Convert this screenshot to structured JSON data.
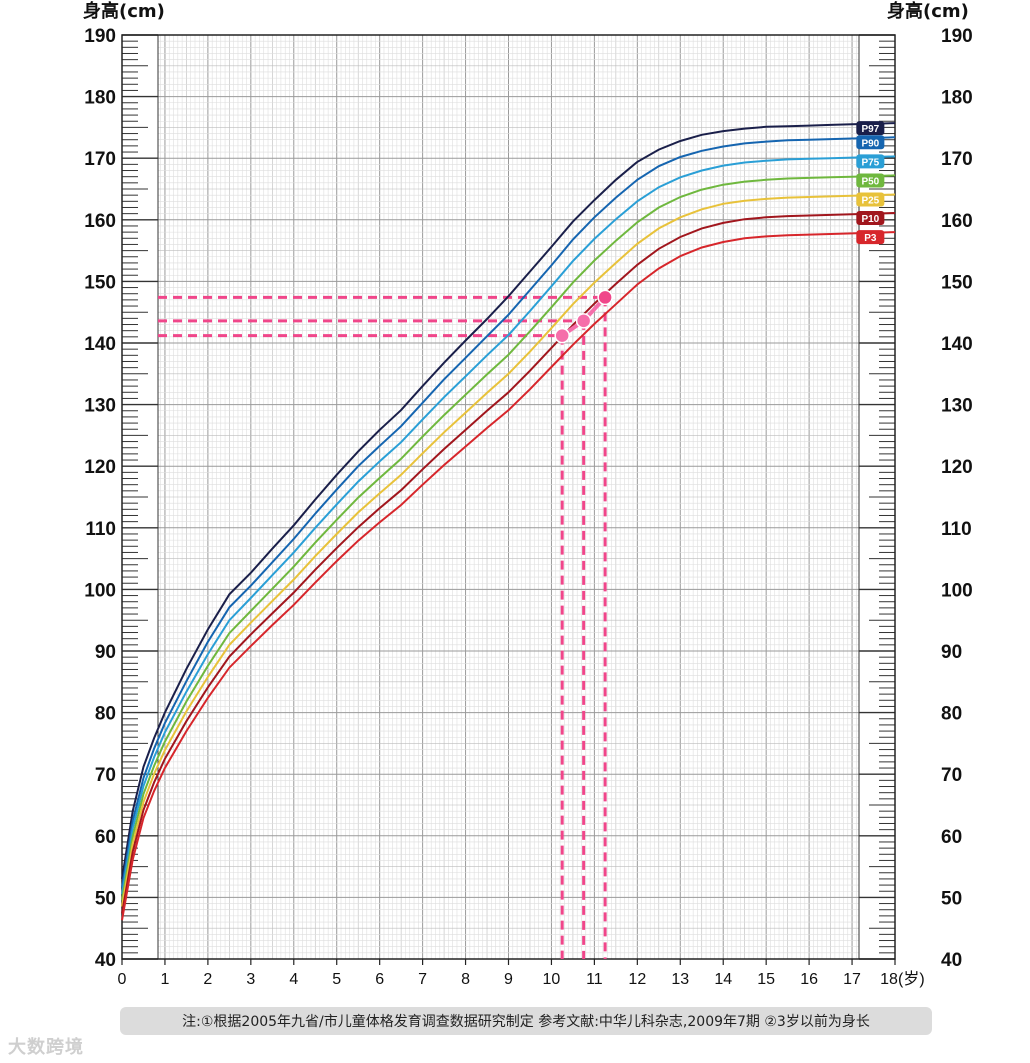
{
  "chart_data": {
    "type": "line",
    "y_label_left": "身高(cm)",
    "y_label_right": "身高(cm)",
    "x_unit": "(岁)",
    "xlim": [
      0,
      18
    ],
    "ylim": [
      40,
      190
    ],
    "x_ticks": [
      0,
      1,
      2,
      3,
      4,
      5,
      6,
      7,
      8,
      9,
      10,
      11,
      12,
      13,
      14,
      15,
      16,
      17,
      18
    ],
    "y_ticks": [
      40,
      50,
      60,
      70,
      80,
      90,
      100,
      110,
      120,
      130,
      140,
      150,
      160,
      170,
      180,
      190
    ],
    "grid": true,
    "legend_placement": "right, at line ends",
    "x": [
      0,
      0.25,
      0.5,
      0.75,
      1,
      1.5,
      2,
      2.5,
      3,
      3.5,
      4,
      4.5,
      5,
      5.5,
      6,
      6.5,
      7,
      7.5,
      8,
      8.5,
      9,
      9.5,
      10,
      10.5,
      11,
      11.5,
      12,
      12.5,
      13,
      13.5,
      14,
      14.5,
      15,
      15.5,
      16,
      16.5,
      17,
      17.5,
      18
    ],
    "series": [
      {
        "name": "P97",
        "color": "#1a1f4a",
        "values": [
          53.0,
          64.0,
          71.2,
          75.9,
          80.0,
          87.1,
          93.5,
          99.2,
          102.7,
          106.6,
          110.4,
          114.6,
          118.6,
          122.4,
          125.9,
          129.1,
          133.0,
          136.8,
          140.4,
          143.9,
          147.6,
          151.6,
          155.6,
          159.7,
          163.2,
          166.5,
          169.4,
          171.4,
          172.8,
          173.8,
          174.4,
          174.8,
          175.1,
          175.2,
          175.3,
          175.4,
          175.5,
          175.6,
          175.7
        ]
      },
      {
        "name": "P90",
        "color": "#1565b0",
        "values": [
          51.6,
          62.4,
          69.4,
          74.2,
          78.3,
          85.1,
          91.5,
          97.1,
          100.6,
          104.4,
          108.2,
          112.3,
          116.2,
          120.0,
          123.3,
          126.5,
          130.3,
          134.1,
          137.6,
          141.1,
          144.6,
          148.6,
          152.6,
          156.8,
          160.4,
          163.6,
          166.5,
          168.7,
          170.2,
          171.2,
          171.9,
          172.4,
          172.7,
          172.9,
          173.0,
          173.1,
          173.2,
          173.3,
          173.4
        ]
      },
      {
        "name": "P75",
        "color": "#2a9fd6",
        "values": [
          50.5,
          61.2,
          68.1,
          72.8,
          76.8,
          83.4,
          89.5,
          95.0,
          98.6,
          102.3,
          106.0,
          110.0,
          113.8,
          117.5,
          120.8,
          123.9,
          127.6,
          131.2,
          134.6,
          138.0,
          141.3,
          145.2,
          149.2,
          153.3,
          156.9,
          160.1,
          163.0,
          165.3,
          166.9,
          168.0,
          168.8,
          169.3,
          169.6,
          169.8,
          169.9,
          170.0,
          170.1,
          170.2,
          170.3
        ]
      },
      {
        "name": "P50",
        "color": "#6fb83e",
        "values": [
          49.5,
          59.9,
          66.8,
          71.4,
          75.3,
          81.8,
          87.6,
          92.9,
          96.5,
          100.1,
          103.7,
          107.6,
          111.3,
          114.9,
          118.1,
          121.2,
          124.8,
          128.3,
          131.6,
          134.9,
          138.1,
          141.9,
          145.8,
          149.8,
          153.4,
          156.6,
          159.6,
          162.0,
          163.7,
          164.9,
          165.7,
          166.2,
          166.5,
          166.7,
          166.8,
          166.9,
          167.0,
          167.1,
          167.2
        ]
      },
      {
        "name": "P25",
        "color": "#e8c23a",
        "values": [
          48.5,
          58.7,
          65.5,
          70.1,
          73.9,
          80.2,
          85.8,
          91.0,
          94.6,
          98.1,
          101.6,
          105.4,
          109.0,
          112.5,
          115.6,
          118.6,
          122.1,
          125.5,
          128.7,
          131.9,
          135.0,
          138.6,
          142.4,
          146.3,
          149.8,
          153.0,
          156.1,
          158.6,
          160.4,
          161.7,
          162.6,
          163.1,
          163.4,
          163.6,
          163.7,
          163.8,
          163.9,
          164.0,
          164.1
        ]
      },
      {
        "name": "P10",
        "color": "#a1161d",
        "values": [
          47.4,
          57.4,
          64.2,
          68.7,
          72.5,
          78.6,
          84.1,
          89.1,
          92.7,
          96.1,
          99.5,
          103.2,
          106.7,
          110.1,
          113.2,
          116.1,
          119.5,
          122.8,
          125.9,
          129.0,
          132.0,
          135.5,
          139.2,
          142.9,
          146.4,
          149.6,
          152.7,
          155.3,
          157.2,
          158.6,
          159.5,
          160.1,
          160.4,
          160.6,
          160.7,
          160.8,
          160.9,
          161.0,
          161.1
        ]
      },
      {
        "name": "P3",
        "color": "#d7262b",
        "values": [
          46.3,
          56.1,
          62.9,
          67.3,
          71.0,
          77.0,
          82.4,
          87.3,
          90.8,
          94.2,
          97.5,
          101.1,
          104.6,
          107.9,
          110.9,
          113.7,
          117.0,
          120.2,
          123.2,
          126.2,
          129.1,
          132.5,
          136.1,
          139.7,
          143.1,
          146.3,
          149.5,
          152.1,
          154.1,
          155.5,
          156.4,
          157.0,
          157.3,
          157.5,
          157.6,
          157.7,
          157.8,
          157.9,
          158.0
        ]
      }
    ],
    "highlight_points": [
      {
        "x": 10.25,
        "y": 141.2
      },
      {
        "x": 10.75,
        "y": 143.6
      },
      {
        "x": 11.25,
        "y": 147.4
      }
    ],
    "highlight_color": "#f0468a",
    "marker_color": "#f56eaa"
  },
  "note": "注:①根据2005年九省/市儿童体格发育调查数据研究制定  参考文献:中华儿科杂志,2009年7期  ②3岁以前为身长",
  "watermark": "大数跨境"
}
